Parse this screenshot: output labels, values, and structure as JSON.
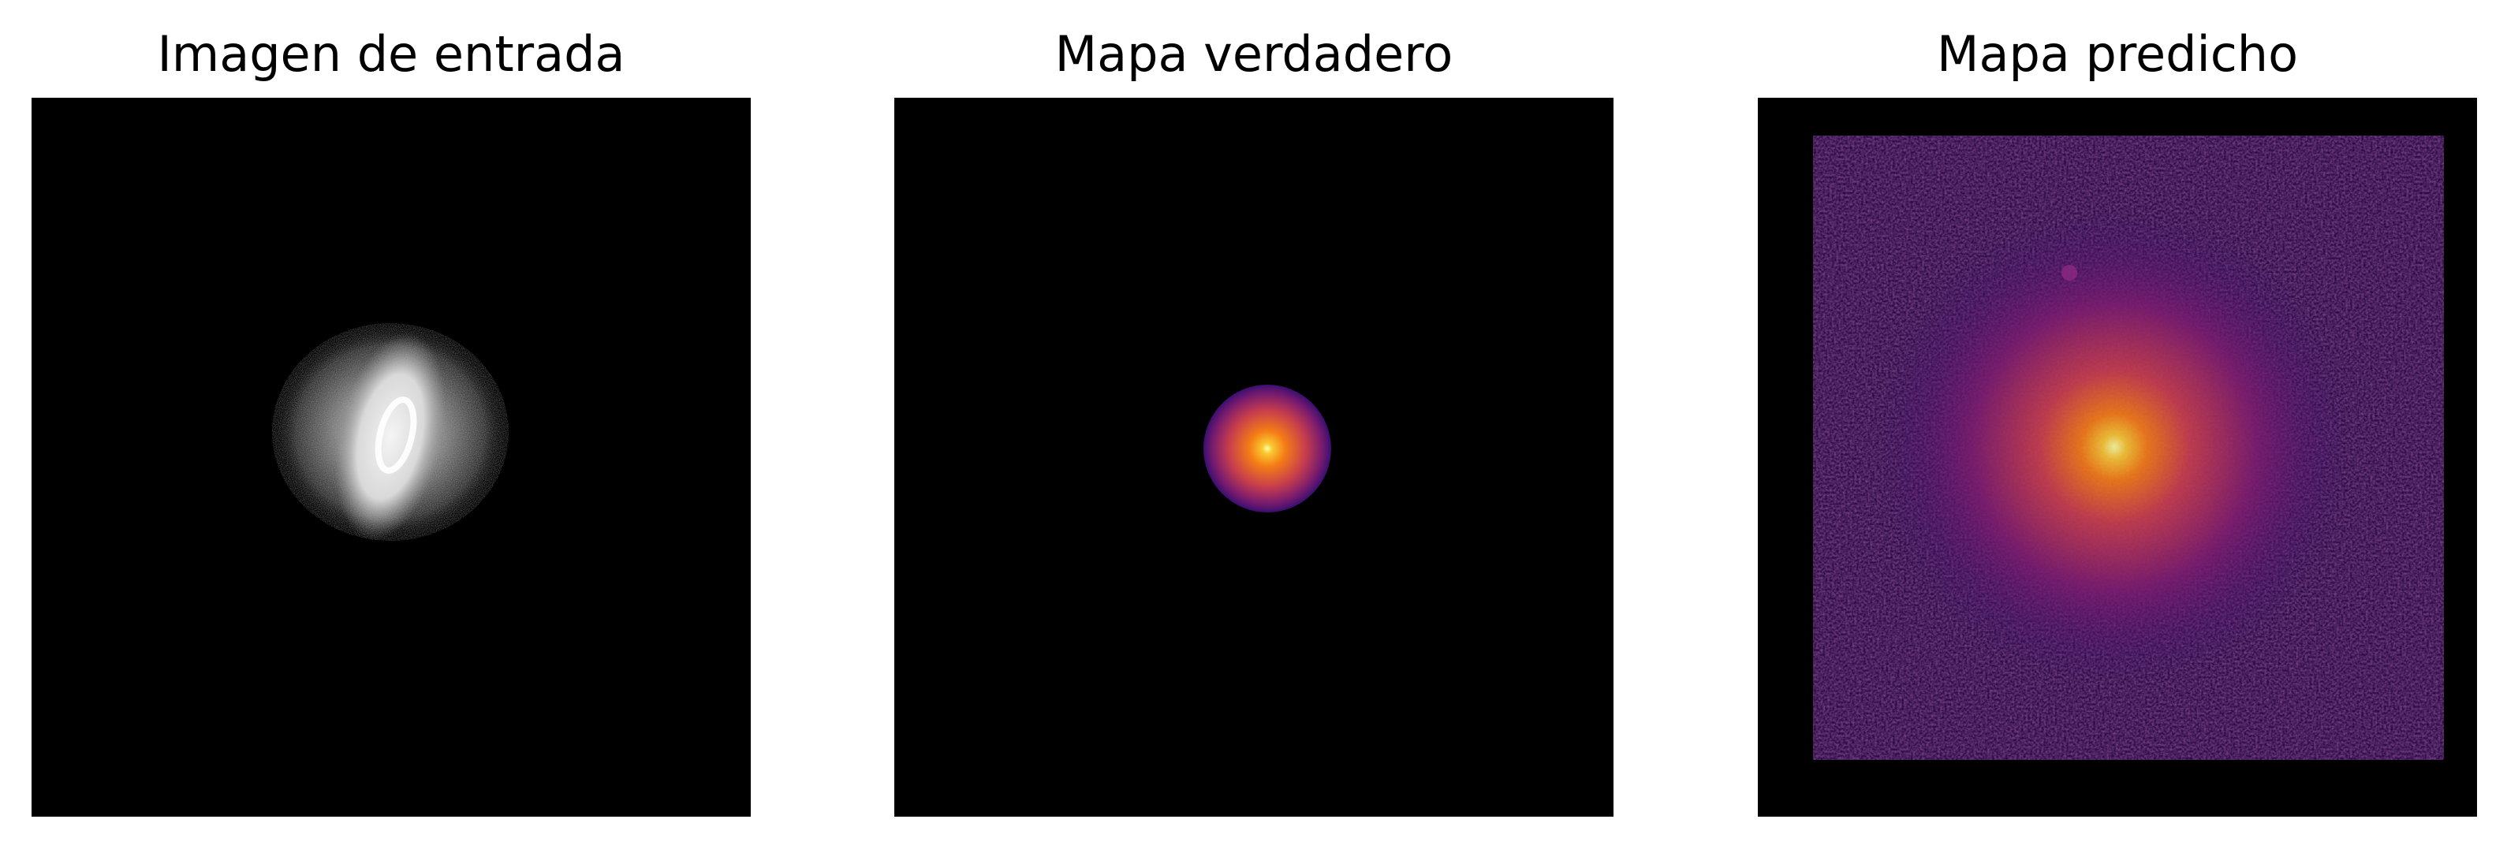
{
  "panels": [
    {
      "title": "Imagen de entrada",
      "colormap": "gray",
      "colors": [
        "#000000",
        "#6e6e6e",
        "#bdbdbd",
        "#f2f2f2"
      ]
    },
    {
      "title": "Mapa verdadero",
      "colormap": "inferno",
      "colors": [
        "#000004",
        "#5b116e",
        "#b5367a",
        "#f57d15",
        "#fcffa4"
      ]
    },
    {
      "title": "Mapa predicho",
      "colormap": "inferno",
      "colors": [
        "#000004",
        "#3b0f70",
        "#8c2981",
        "#f57d15",
        "#fcffa4"
      ]
    }
  ]
}
